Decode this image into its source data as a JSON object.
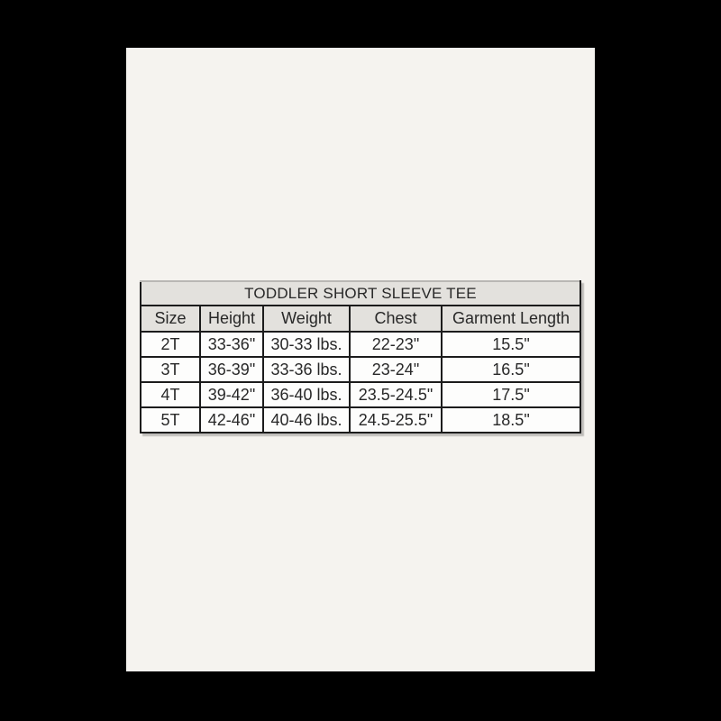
{
  "canvas": {
    "background_color": "#000000",
    "page_background_color": "#f5f3ef"
  },
  "size_chart": {
    "title": "TODDLER SHORT SLEEVE TEE",
    "columns": [
      "Size",
      "Height",
      "Weight",
      "Chest",
      "Garment Length"
    ],
    "rows": [
      [
        "2T",
        "33-36\"",
        "30-33 lbs.",
        "22-23\"",
        "15.5\""
      ],
      [
        "3T",
        "36-39\"",
        "33-36 lbs.",
        "23-24\"",
        "16.5\""
      ],
      [
        "4T",
        "39-42\"",
        "36-40 lbs.",
        "23.5-24.5\"",
        "17.5\""
      ],
      [
        "5T",
        "42-46\"",
        "40-46 lbs.",
        "24.5-25.5\"",
        "18.5\""
      ]
    ],
    "colors": {
      "header_background": "#e3e1dd",
      "row_background": "#fdfdfc",
      "border": "#1c1c1c",
      "text": "#282828"
    }
  },
  "chart_data": {
    "type": "table",
    "title": "TODDLER SHORT SLEEVE TEE",
    "columns": [
      "Size",
      "Height",
      "Weight",
      "Chest",
      "Garment Length"
    ],
    "rows": [
      [
        "2T",
        "33-36\"",
        "30-33 lbs.",
        "22-23\"",
        "15.5\""
      ],
      [
        "3T",
        "36-39\"",
        "33-36 lbs.",
        "23-24\"",
        "16.5\""
      ],
      [
        "4T",
        "39-42\"",
        "36-40 lbs.",
        "23.5-24.5\"",
        "17.5\""
      ],
      [
        "5T",
        "42-46\"",
        "40-46 lbs.",
        "24.5-25.5\"",
        "18.5\""
      ]
    ]
  }
}
